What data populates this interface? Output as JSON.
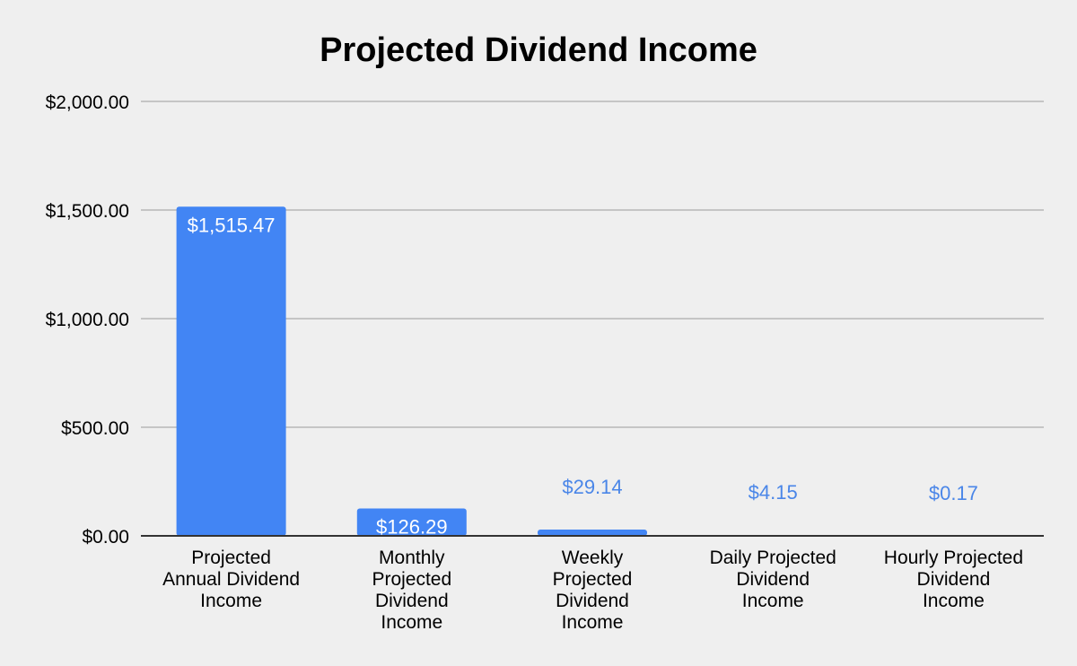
{
  "chart_data": {
    "type": "bar",
    "title": "Projected Dividend Income",
    "xlabel": "",
    "ylabel": "",
    "categories": [
      [
        "Projected",
        "Annual Dividend",
        "Income"
      ],
      [
        "Monthly",
        "Projected",
        "Dividend",
        "Income"
      ],
      [
        "Weekly",
        "Projected",
        "Dividend",
        "Income"
      ],
      [
        "Daily Projected",
        "Dividend",
        "Income"
      ],
      [
        "Hourly Projected",
        "Dividend",
        "Income"
      ]
    ],
    "values": [
      1515.47,
      126.29,
      29.14,
      4.15,
      0.17
    ],
    "data_labels": [
      "$1,515.47",
      "$126.29",
      "$29.14",
      "$4.15",
      "$0.17"
    ],
    "ylim": [
      0,
      2000
    ],
    "yticks": [
      0,
      500,
      1000,
      1500,
      2000
    ],
    "ytick_labels": [
      "$0.00",
      "$500.00",
      "$1,000.00",
      "$1,500.00",
      "$2,000.00"
    ],
    "grid": true,
    "legend": "none",
    "colors": {
      "bar": "#4285f4",
      "outside_label": "#4a86e8",
      "gridline": "#b7b7b7",
      "axis": "#333333",
      "background": "#efefef"
    }
  }
}
